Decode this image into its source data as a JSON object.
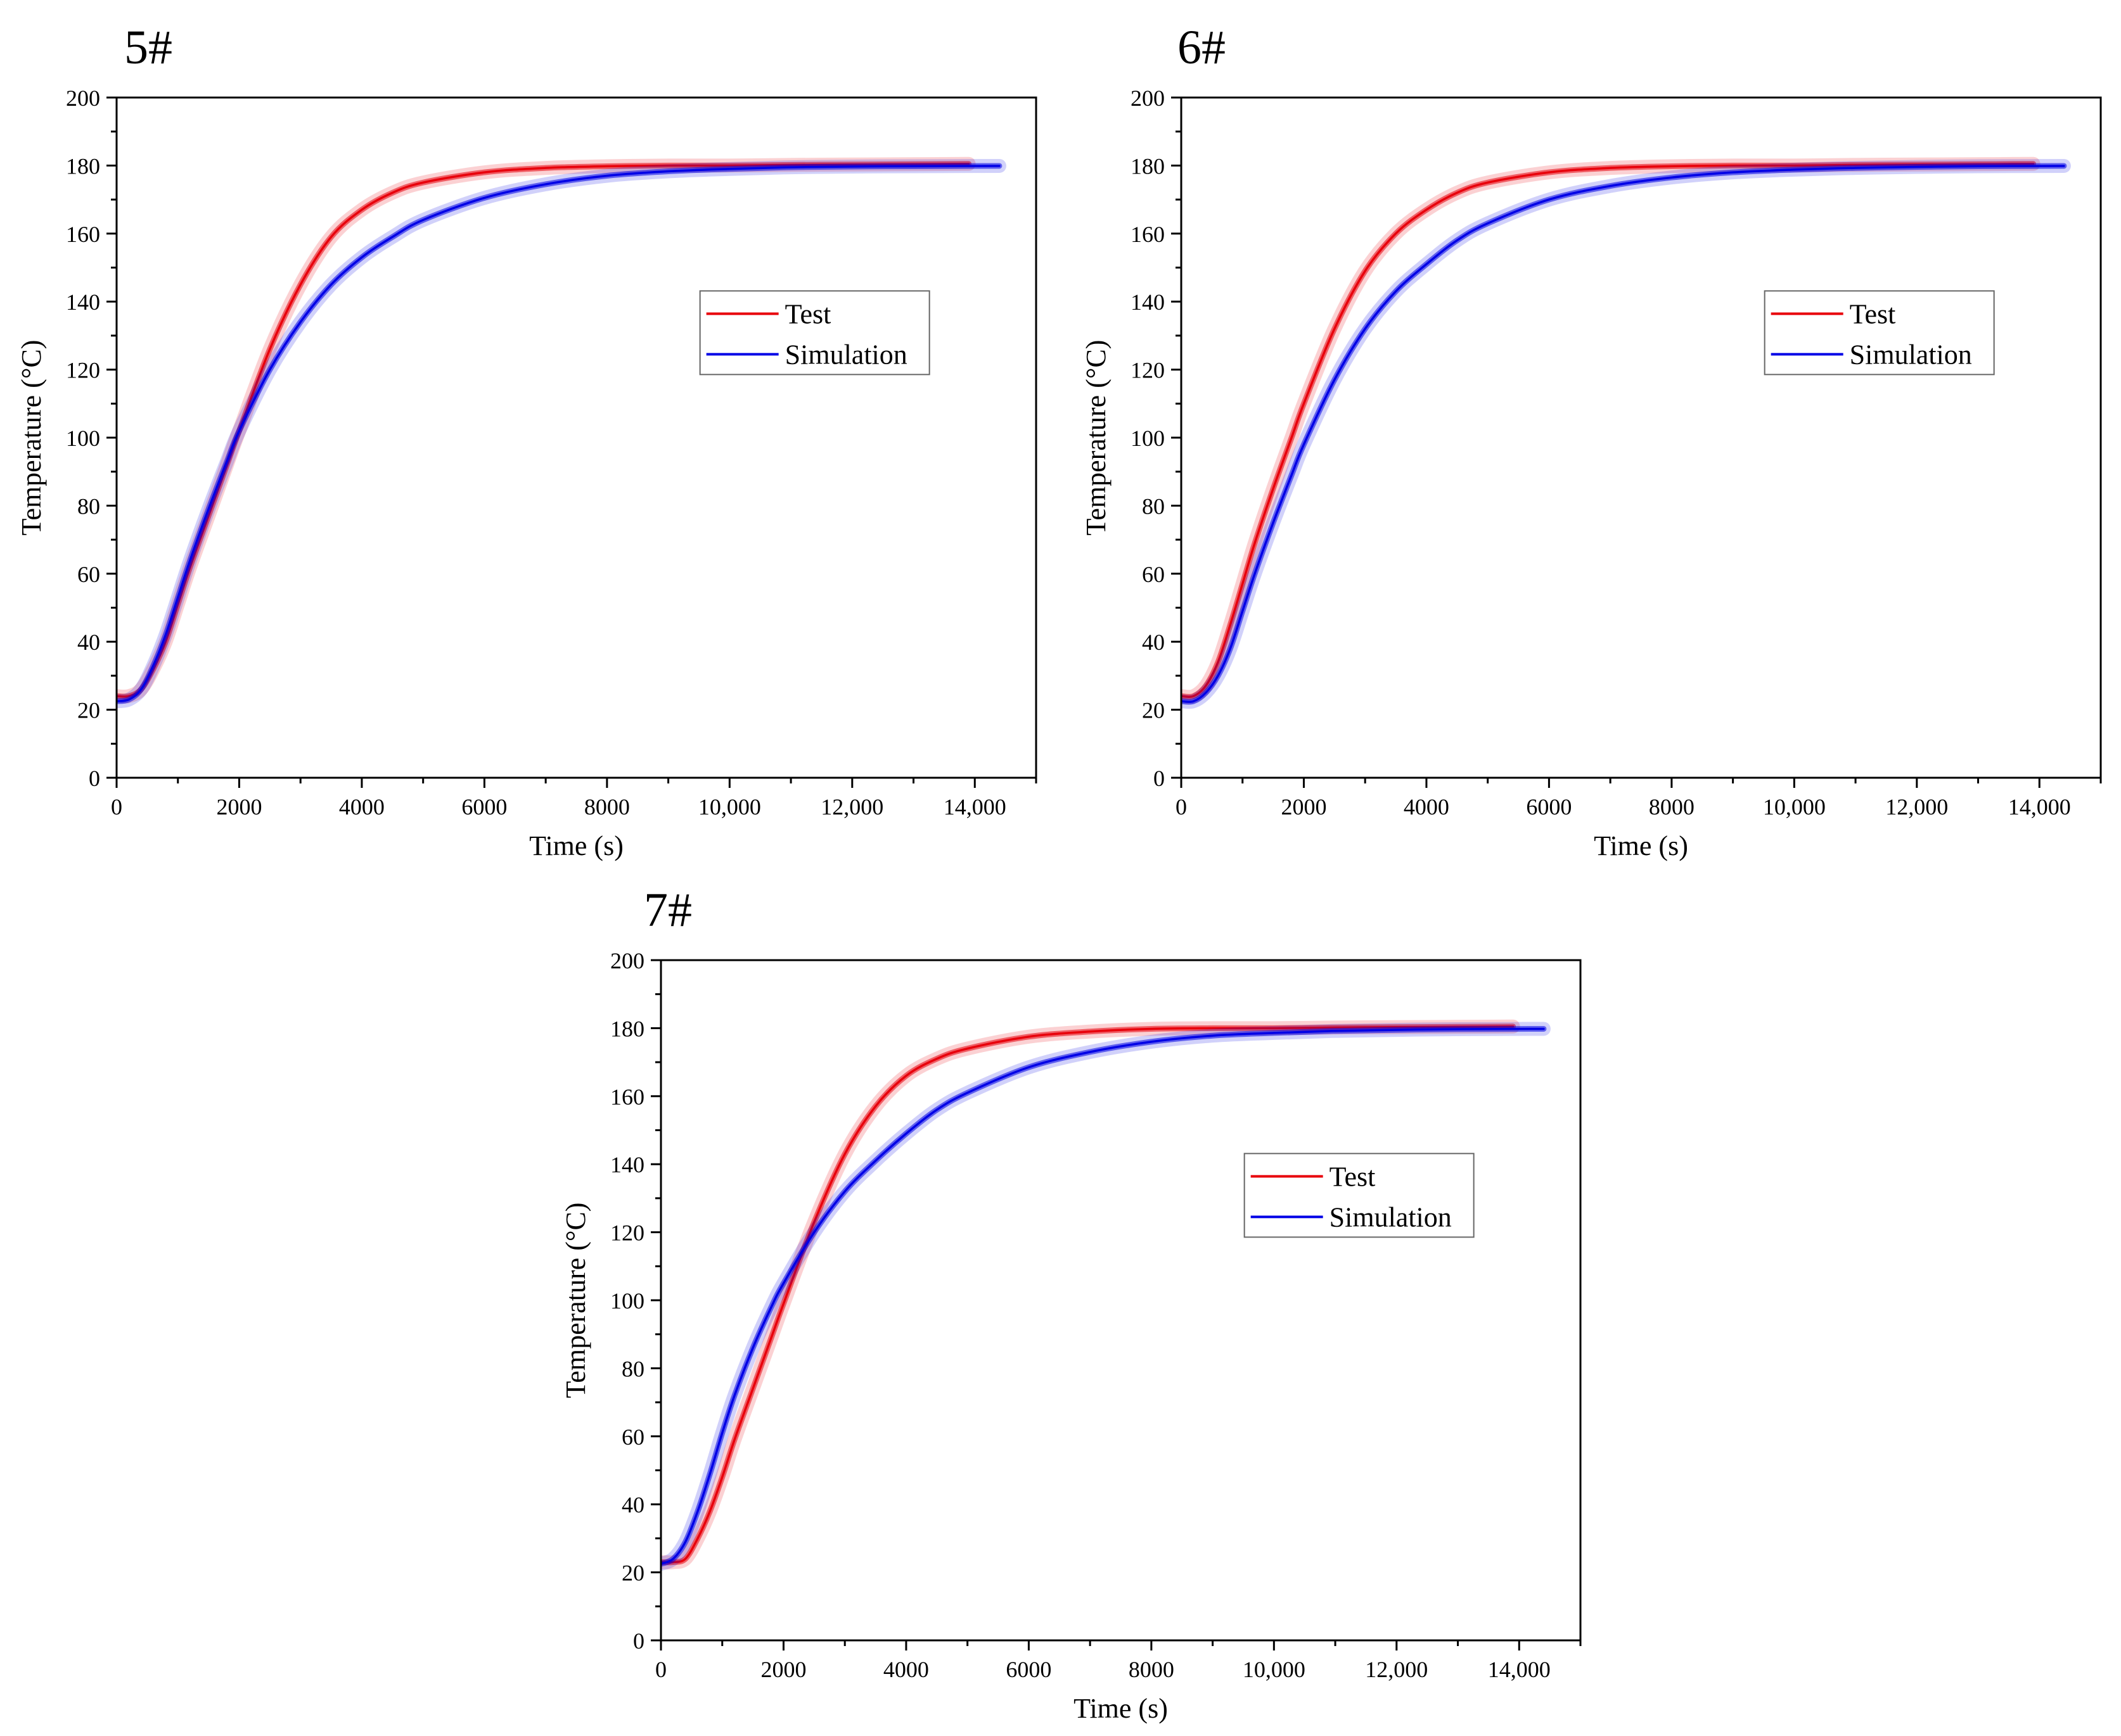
{
  "chart_data": [
    {
      "panel_label": "5#",
      "type": "line",
      "xlabel": "Time (s)",
      "ylabel": "Temperature (°C)",
      "xlim": [
        0,
        15000
      ],
      "ylim": [
        0,
        200
      ],
      "x_ticks": [
        0,
        2000,
        4000,
        6000,
        8000,
        10000,
        12000,
        14000
      ],
      "x_tick_labels": [
        "0",
        "2000",
        "4000",
        "6000",
        "8000",
        "10,000",
        "12,000",
        "14,000"
      ],
      "y_ticks": [
        0,
        20,
        40,
        60,
        80,
        100,
        120,
        140,
        160,
        180,
        200
      ],
      "y_tick_labels": [
        "0",
        "20",
        "40",
        "60",
        "80",
        "100",
        "120",
        "140",
        "160",
        "180",
        "200"
      ],
      "legend": {
        "position": "right-middle",
        "entries": [
          "Test",
          "Simulation"
        ]
      },
      "series": [
        {
          "name": "Test",
          "color": "#e8000b",
          "x": [
            0,
            200,
            400,
            600,
            800,
            1000,
            1200,
            1500,
            1800,
            2000,
            2500,
            3000,
            3500,
            4000,
            4500,
            5000,
            6000,
            7000,
            8000,
            9000,
            10000,
            11000,
            12000,
            13000,
            13900
          ],
          "y": [
            24,
            24,
            26,
            32,
            40,
            51,
            62,
            77,
            92,
            102,
            126,
            145,
            159,
            167,
            172,
            175,
            178,
            179.3,
            179.8,
            180,
            180,
            180.2,
            180.3,
            180.4,
            180.5
          ]
        },
        {
          "name": "Simulation",
          "color": "#0000e6",
          "x": [
            0,
            200,
            400,
            600,
            800,
            1000,
            1200,
            1500,
            1800,
            2000,
            2500,
            3000,
            3500,
            4000,
            4500,
            5000,
            6000,
            7000,
            8000,
            9000,
            10000,
            11000,
            12000,
            13000,
            14400
          ],
          "y": [
            22.5,
            23,
            26,
            33,
            42,
            53,
            64,
            79,
            93,
            102,
            120,
            134,
            145,
            153,
            159,
            164,
            170.5,
            174.5,
            177,
            178.3,
            179,
            179.5,
            179.7,
            179.8,
            179.9
          ]
        }
      ]
    },
    {
      "panel_label": "6#",
      "type": "line",
      "xlabel": "Time (s)",
      "ylabel": "Temperature (°C)",
      "xlim": [
        0,
        15000
      ],
      "ylim": [
        0,
        200
      ],
      "x_ticks": [
        0,
        2000,
        4000,
        6000,
        8000,
        10000,
        12000,
        14000
      ],
      "x_tick_labels": [
        "0",
        "2000",
        "4000",
        "6000",
        "8000",
        "10,000",
        "12,000",
        "14,000"
      ],
      "y_ticks": [
        0,
        20,
        40,
        60,
        80,
        100,
        120,
        140,
        160,
        180,
        200
      ],
      "y_tick_labels": [
        "0",
        "20",
        "40",
        "60",
        "80",
        "100",
        "120",
        "140",
        "160",
        "180",
        "200"
      ],
      "legend": {
        "position": "right-middle",
        "entries": [
          "Test",
          "Simulation"
        ]
      },
      "series": [
        {
          "name": "Test",
          "color": "#e8000b",
          "x": [
            0,
            200,
            400,
            600,
            800,
            1000,
            1200,
            1500,
            1800,
            2000,
            2500,
            3000,
            3500,
            4000,
            4500,
            5000,
            6000,
            7000,
            8000,
            9000,
            10000,
            11000,
            12000,
            13000,
            13900
          ],
          "y": [
            24,
            24,
            27,
            34,
            45,
            57,
            69,
            85,
            100,
            110,
            132,
            149,
            160,
            167,
            172,
            175,
            178,
            179.3,
            179.8,
            180,
            180,
            180.2,
            180.3,
            180.4,
            180.5
          ]
        },
        {
          "name": "Simulation",
          "color": "#0000e6",
          "x": [
            0,
            200,
            400,
            600,
            800,
            1000,
            1200,
            1500,
            1800,
            2000,
            2500,
            3000,
            3500,
            4000,
            4500,
            5000,
            6000,
            7000,
            8000,
            9000,
            10000,
            11000,
            12000,
            13000,
            14400
          ],
          "y": [
            22.5,
            22.5,
            25,
            30,
            38,
            49,
            60,
            75,
            89,
            98,
            117,
            132,
            143,
            151,
            158,
            163,
            170,
            174,
            176.5,
            178,
            178.8,
            179.3,
            179.6,
            179.8,
            179.9
          ]
        }
      ]
    },
    {
      "panel_label": "7#",
      "type": "line",
      "xlabel": "Time (s)",
      "ylabel": "Temperature (°C)",
      "xlim": [
        0,
        15000
      ],
      "ylim": [
        0,
        200
      ],
      "x_ticks": [
        0,
        2000,
        4000,
        6000,
        8000,
        10000,
        12000,
        14000
      ],
      "x_tick_labels": [
        "0",
        "2000",
        "4000",
        "6000",
        "8000",
        "10,000",
        "12,000",
        "14,000"
      ],
      "y_ticks": [
        0,
        20,
        40,
        60,
        80,
        100,
        120,
        140,
        160,
        180,
        200
      ],
      "y_tick_labels": [
        "0",
        "20",
        "40",
        "60",
        "80",
        "100",
        "120",
        "140",
        "160",
        "180",
        "200"
      ],
      "legend": {
        "position": "right-middle",
        "entries": [
          "Test",
          "Simulation"
        ]
      },
      "series": [
        {
          "name": "Test",
          "color": "#e8000b",
          "x": [
            0,
            200,
            400,
            600,
            800,
            1000,
            1200,
            1500,
            1800,
            2000,
            2500,
            3000,
            3500,
            4000,
            4500,
            5000,
            6000,
            7000,
            8000,
            9000,
            10000,
            11000,
            12000,
            13000,
            13900
          ],
          "y": [
            23,
            23,
            24,
            30,
            38,
            48,
            59,
            74,
            89,
            99,
            123,
            143,
            157,
            166,
            171,
            174,
            177.5,
            179,
            179.8,
            180,
            180,
            180.2,
            180.3,
            180.4,
            180.5
          ]
        },
        {
          "name": "Simulation",
          "color": "#0000e6",
          "x": [
            0,
            200,
            400,
            600,
            800,
            1000,
            1200,
            1500,
            1800,
            2000,
            2500,
            3000,
            3500,
            4000,
            4500,
            5000,
            6000,
            7000,
            8000,
            9000,
            10000,
            11000,
            12000,
            13000,
            14400
          ],
          "y": [
            22.5,
            24,
            29,
            38,
            49,
            61,
            72,
            86,
            98,
            105,
            120,
            132,
            141,
            149,
            156,
            161,
            168.5,
            173,
            176,
            177.8,
            178.6,
            179.2,
            179.5,
            179.7,
            179.8
          ]
        }
      ]
    }
  ]
}
